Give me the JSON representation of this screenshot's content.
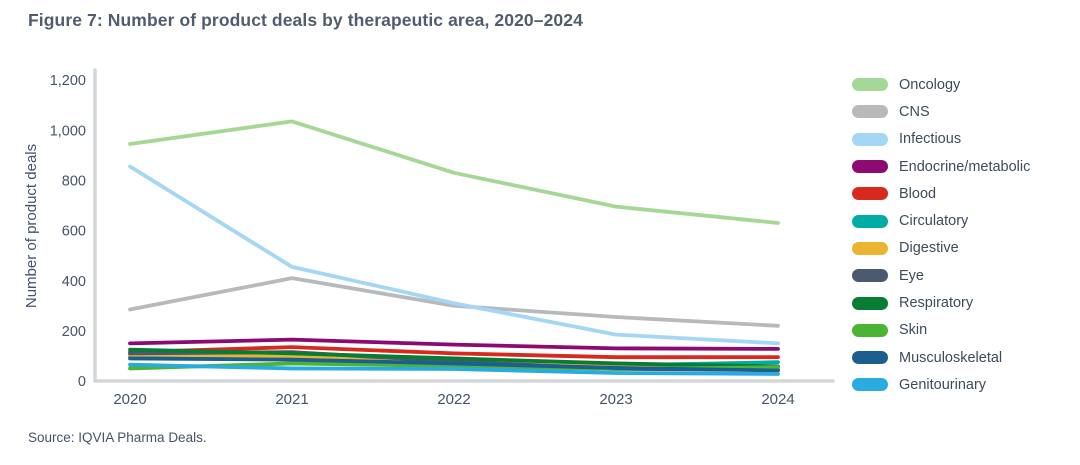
{
  "title": "Figure 7: Number of product deals by therapeutic area, 2020–2024",
  "source": "Source: IQVIA Pharma Deals.",
  "colors": {
    "title_text": "#515d6e",
    "axis_text": "#44546a",
    "legend_text": "#3d4b5c",
    "axis_line": "#d3d6d8"
  },
  "chart_data": {
    "type": "line",
    "categories": [
      "2020",
      "2021",
      "2022",
      "2023",
      "2024"
    ],
    "xlabel": "",
    "ylabel": "Number of product deals",
    "ylim": [
      0,
      1200
    ],
    "grid": false,
    "legend_position": "right",
    "y_ticks": {
      "values": [
        0,
        200,
        400,
        600,
        800,
        1000,
        1200
      ],
      "labels": [
        "0",
        "200",
        "400",
        "600",
        "800",
        "1,000",
        "1,200"
      ]
    },
    "series": [
      {
        "name": "Oncology",
        "color": "#a5d796",
        "values": [
          945,
          1035,
          830,
          695,
          630
        ]
      },
      {
        "name": "CNS",
        "color": "#b7b9bb",
        "values": [
          285,
          410,
          300,
          255,
          220
        ]
      },
      {
        "name": "Infectious",
        "color": "#a4d7f4",
        "values": [
          855,
          455,
          310,
          185,
          150
        ]
      },
      {
        "name": "Endocrine/metabolic",
        "color": "#8d0a70",
        "values": [
          150,
          165,
          145,
          130,
          128
        ]
      },
      {
        "name": "Blood",
        "color": "#d8291f",
        "values": [
          115,
          135,
          110,
          95,
          95
        ]
      },
      {
        "name": "Circulatory",
        "color": "#00ada4",
        "values": [
          100,
          100,
          85,
          62,
          75
        ]
      },
      {
        "name": "Digestive",
        "color": "#eab430",
        "values": [
          105,
          100,
          80,
          55,
          50
        ]
      },
      {
        "name": "Eye",
        "color": "#4a5a6e",
        "values": [
          110,
          115,
          78,
          48,
          45
        ]
      },
      {
        "name": "Respiratory",
        "color": "#077c35",
        "values": [
          125,
          110,
          90,
          70,
          58
        ]
      },
      {
        "name": "Skin",
        "color": "#4cb434",
        "values": [
          50,
          70,
          60,
          48,
          55
        ]
      },
      {
        "name": "Musculoskeletal",
        "color": "#1c5f8f",
        "values": [
          90,
          85,
          70,
          52,
          42
        ]
      },
      {
        "name": "Genitourinary",
        "color": "#29abe2",
        "values": [
          65,
          50,
          48,
          32,
          28
        ]
      }
    ]
  }
}
